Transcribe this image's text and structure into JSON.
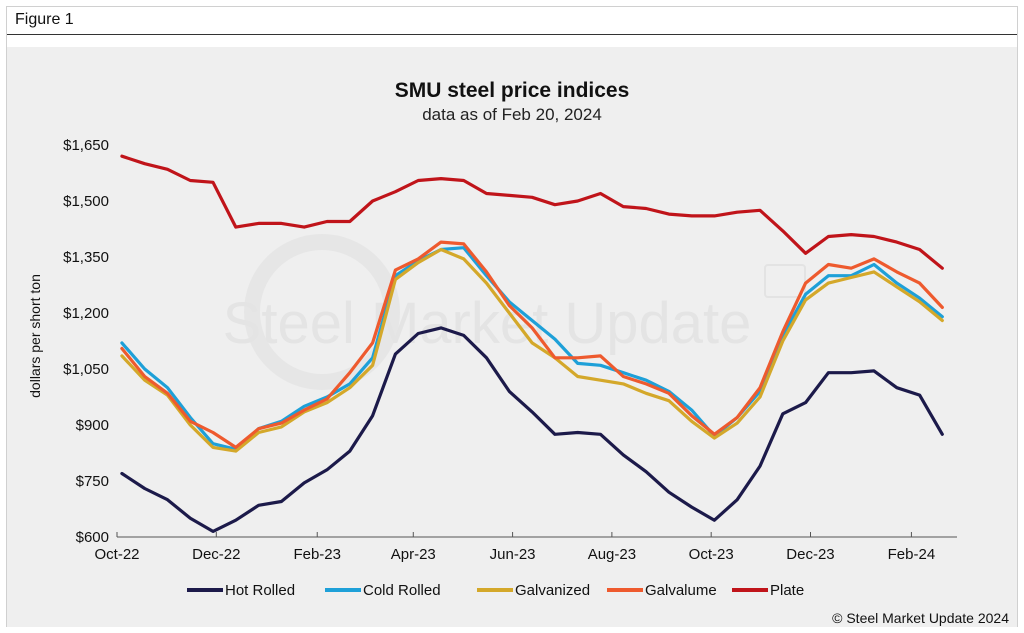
{
  "figure_label": "Figure 1",
  "colors": {
    "panel_bg": "#efefef",
    "hot_rolled": "#1c1a4a",
    "cold_rolled": "#1ea0d8",
    "galvanized": "#d4a82a",
    "galvalume": "#ee5a2e",
    "plate": "#c0141a"
  },
  "chart_data": {
    "type": "line",
    "title": "SMU steel price indices",
    "subtitle": "data as of Feb 20, 2024",
    "ylabel": "dollars per short ton",
    "ylim": [
      600,
      1650
    ],
    "yticks": [
      600,
      750,
      900,
      1050,
      1200,
      1350,
      1500,
      1650
    ],
    "ytick_labels": [
      "$600",
      "$750",
      "$900",
      "$1,050",
      "$1,200",
      "$1,350",
      "$1,500",
      "$1,650"
    ],
    "xlim": [
      "2022-10-01",
      "2024-02-29"
    ],
    "xticks": [
      "2022-10-01",
      "2022-12-01",
      "2023-02-01",
      "2023-04-01",
      "2023-06-01",
      "2023-08-01",
      "2023-10-01",
      "2023-12-01",
      "2024-02-01"
    ],
    "xtick_labels": [
      "Oct-22",
      "Dec-22",
      "Feb-23",
      "Apr-23",
      "Jun-23",
      "Aug-23",
      "Oct-23",
      "Dec-23",
      "Feb-24"
    ],
    "grid": false,
    "legend_position": "bottom",
    "watermark": "Steel Market Update",
    "source": "© Steel Market Update 2024",
    "x": [
      "2022-10-04",
      "2022-10-18",
      "2022-11-01",
      "2022-11-15",
      "2022-11-29",
      "2022-12-13",
      "2022-12-27",
      "2023-01-10",
      "2023-01-24",
      "2023-02-07",
      "2023-02-21",
      "2023-03-07",
      "2023-03-21",
      "2023-04-04",
      "2023-04-18",
      "2023-05-02",
      "2023-05-16",
      "2023-05-30",
      "2023-06-13",
      "2023-06-27",
      "2023-07-11",
      "2023-07-25",
      "2023-08-08",
      "2023-08-22",
      "2023-09-05",
      "2023-09-19",
      "2023-10-03",
      "2023-10-17",
      "2023-10-31",
      "2023-11-14",
      "2023-11-28",
      "2023-12-12",
      "2023-12-26",
      "2024-01-09",
      "2024-01-23",
      "2024-02-06",
      "2024-02-20"
    ],
    "series": [
      {
        "name": "Hot Rolled",
        "color": "#1c1a4a",
        "values": [
          770,
          730,
          700,
          650,
          615,
          645,
          685,
          695,
          745,
          780,
          830,
          925,
          1090,
          1145,
          1160,
          1140,
          1080,
          990,
          935,
          875,
          880,
          875,
          820,
          775,
          720,
          680,
          645,
          700,
          790,
          930,
          960,
          1040,
          1040,
          1045,
          1000,
          980,
          875
        ]
      },
      {
        "name": "Cold Rolled",
        "color": "#1ea0d8",
        "values": [
          1120,
          1050,
          1000,
          920,
          850,
          835,
          890,
          910,
          950,
          975,
          1010,
          1080,
          1300,
          1340,
          1370,
          1375,
          1300,
          1230,
          1180,
          1130,
          1065,
          1060,
          1040,
          1020,
          990,
          940,
          870,
          920,
          990,
          1140,
          1250,
          1300,
          1300,
          1330,
          1280,
          1240,
          1190
        ]
      },
      {
        "name": "Galvanized",
        "color": "#d4a82a",
        "values": [
          1085,
          1020,
          980,
          900,
          840,
          830,
          880,
          895,
          935,
          960,
          1000,
          1060,
          1290,
          1335,
          1370,
          1345,
          1280,
          1200,
          1120,
          1080,
          1030,
          1020,
          1010,
          985,
          965,
          910,
          865,
          905,
          975,
          1125,
          1235,
          1280,
          1295,
          1310,
          1270,
          1230,
          1180
        ]
      },
      {
        "name": "Galvalume",
        "color": "#ee5a2e",
        "values": [
          1105,
          1030,
          985,
          910,
          880,
          840,
          890,
          905,
          940,
          970,
          1040,
          1120,
          1315,
          1345,
          1390,
          1385,
          1310,
          1220,
          1160,
          1080,
          1080,
          1085,
          1030,
          1010,
          985,
          925,
          875,
          920,
          1000,
          1150,
          1280,
          1330,
          1320,
          1345,
          1310,
          1280,
          1215
        ]
      },
      {
        "name": "Plate",
        "color": "#c0141a",
        "values": [
          1620,
          1600,
          1585,
          1555,
          1550,
          1430,
          1440,
          1440,
          1430,
          1445,
          1445,
          1500,
          1525,
          1555,
          1560,
          1555,
          1520,
          1515,
          1510,
          1490,
          1500,
          1520,
          1485,
          1480,
          1465,
          1460,
          1460,
          1470,
          1475,
          1420,
          1360,
          1405,
          1410,
          1405,
          1390,
          1370,
          1320
        ]
      }
    ]
  }
}
